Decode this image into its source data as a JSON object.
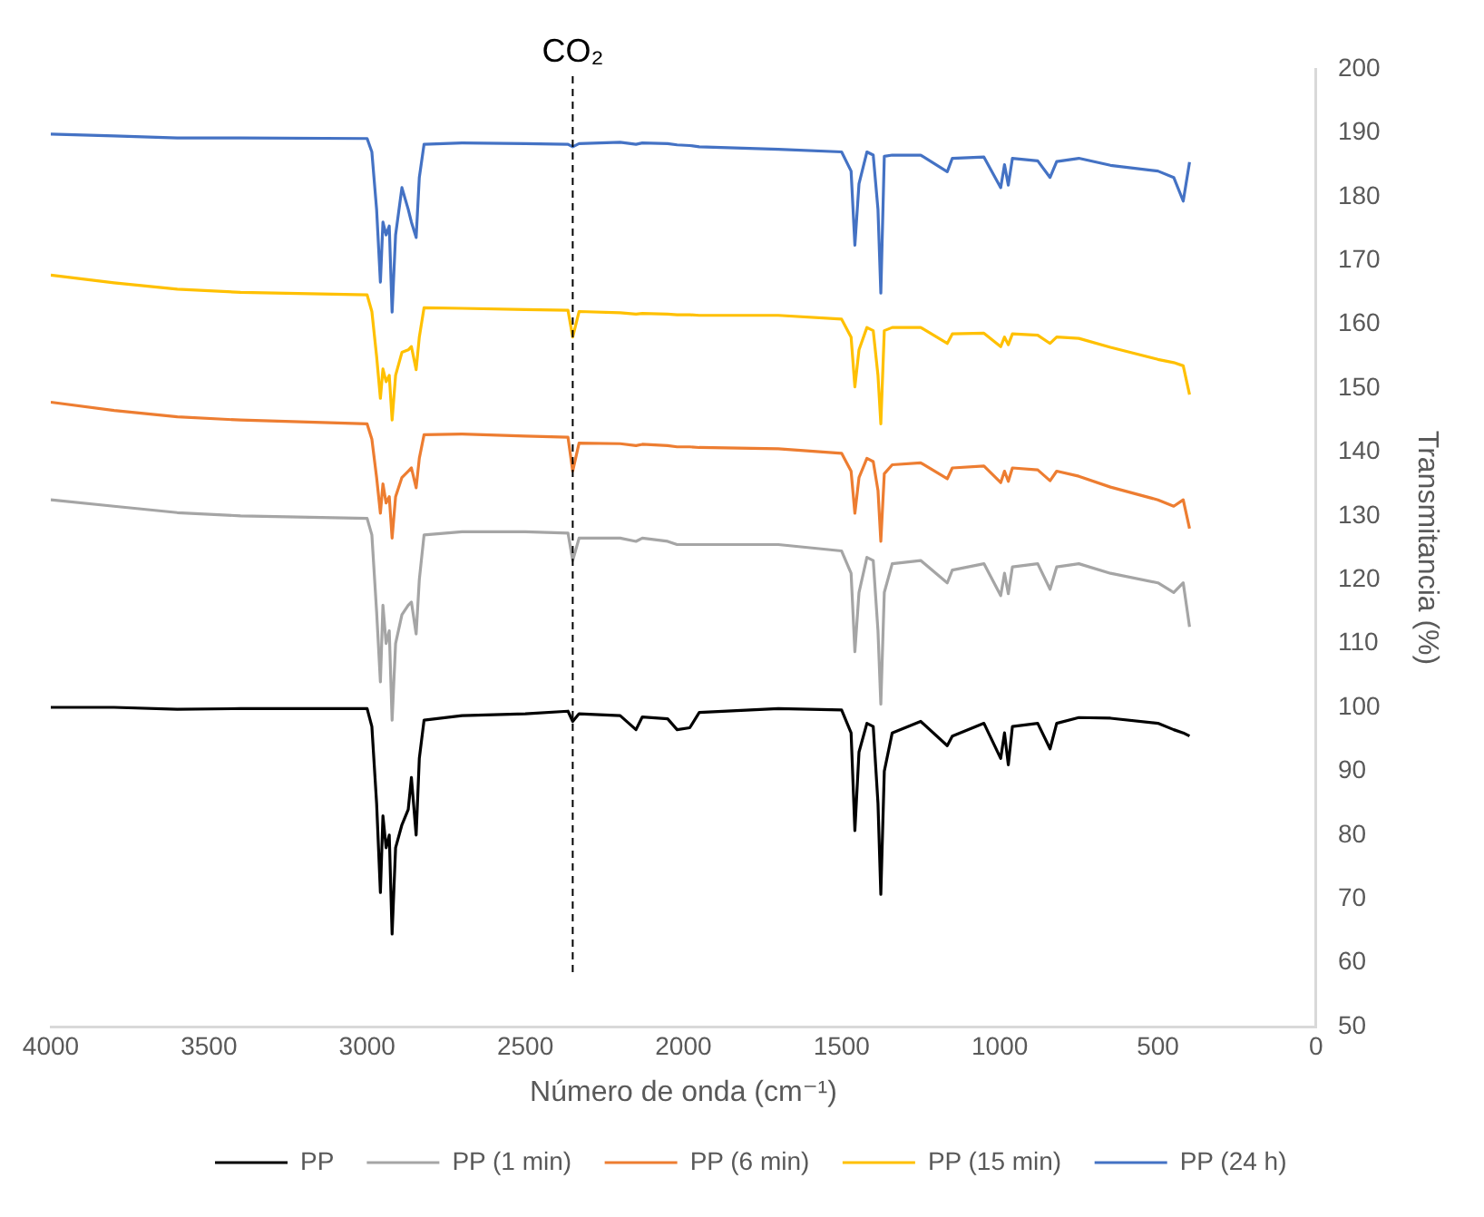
{
  "chart_data": {
    "type": "line",
    "xlabel": "Número de onda (cm⁻¹)",
    "ylabel": "Transmitancia (%)",
    "x": [
      4000,
      3800,
      3600,
      3400,
      3000,
      2985,
      2970,
      2958,
      2950,
      2940,
      2930,
      2921,
      2910,
      2890,
      2870,
      2860,
      2845,
      2835,
      2820,
      2700,
      2500,
      2365,
      2350,
      2330,
      2200,
      2150,
      2130,
      2050,
      2020,
      1980,
      1950,
      1700,
      1500,
      1470,
      1458,
      1445,
      1420,
      1400,
      1385,
      1376,
      1365,
      1340,
      1250,
      1166,
      1150,
      1050,
      997,
      985,
      973,
      960,
      880,
      841,
      820,
      750,
      650,
      500,
      450,
      420,
      400
    ],
    "series": [
      {
        "name": "PP",
        "color": "#000000",
        "values": [
          100,
          100,
          99.7,
          99.8,
          99.8,
          97,
          85,
          71,
          83,
          78,
          80,
          64.5,
          78,
          81.6,
          84,
          89,
          80,
          92,
          98,
          98.7,
          99,
          99.4,
          97.8,
          99,
          98.7,
          96.5,
          98.5,
          98.2,
          96.5,
          96.8,
          99.2,
          99.8,
          99.6,
          96,
          80.7,
          93,
          97.5,
          97,
          85,
          70.7,
          90,
          96,
          97.8,
          94,
          95.5,
          97.5,
          92,
          96,
          91,
          97,
          97.5,
          93.5,
          97.5,
          98.4,
          98.3,
          97.5,
          96.5,
          96,
          95.5
        ]
      },
      {
        "name": "PP (1 min)",
        "color": "#a5a5a5",
        "values": [
          132.5,
          131.5,
          130.5,
          130,
          129.6,
          127,
          115,
          104,
          116,
          110,
          112,
          98,
          110,
          114.5,
          116,
          116.5,
          111.5,
          120,
          127,
          127.5,
          127.5,
          127.3,
          123,
          126.5,
          126.5,
          126,
          126.5,
          126,
          125.5,
          125.5,
          125.5,
          125.5,
          124.5,
          121,
          108.7,
          118,
          123.5,
          123,
          112,
          100.5,
          118,
          122.5,
          123,
          119.5,
          121.5,
          122.5,
          117.5,
          121,
          117.8,
          122,
          122.5,
          118.5,
          122,
          122.5,
          121,
          119.5,
          118,
          119.5,
          112.6
        ]
      },
      {
        "name": "PP (6 min)",
        "color": "#ed7d31",
        "values": [
          147.8,
          146.5,
          145.5,
          145,
          144.4,
          142,
          136,
          130.4,
          135,
          132,
          133,
          126.5,
          133,
          136,
          137,
          137.5,
          134.4,
          139,
          142.7,
          142.8,
          142.5,
          142.3,
          137,
          141.4,
          141.3,
          141,
          141.2,
          141,
          140.8,
          140.8,
          140.7,
          140.5,
          139.8,
          137,
          130.4,
          136,
          139,
          138.5,
          134,
          126,
          136.6,
          138,
          138.3,
          135.8,
          137.5,
          137.8,
          135.2,
          137,
          135.4,
          137.5,
          137.2,
          135.5,
          137,
          136.2,
          134.5,
          132.5,
          131.5,
          132.5,
          128
        ]
      },
      {
        "name": "PP (15 min)",
        "color": "#ffc000",
        "values": [
          167.7,
          166.5,
          165.5,
          165,
          164.6,
          162,
          155,
          148.4,
          153,
          151,
          152,
          145,
          152,
          155.6,
          156,
          156.5,
          152.9,
          158,
          162.6,
          162.5,
          162.3,
          162.2,
          158,
          162,
          161.8,
          161.6,
          161.7,
          161.6,
          161.5,
          161.5,
          161.4,
          161.4,
          160.8,
          158,
          150.2,
          156,
          159.5,
          159,
          152,
          144.4,
          159,
          159.5,
          159.5,
          157,
          158.5,
          158.6,
          156.5,
          158,
          156.8,
          158.5,
          158.3,
          157,
          158,
          157.8,
          156.4,
          154.5,
          154,
          153.5,
          149
        ]
      },
      {
        "name": "PP (24 h)",
        "color": "#4472c4",
        "values": [
          189.8,
          189.5,
          189.2,
          189.2,
          189.1,
          187,
          178,
          166.6,
          176,
          174,
          175.4,
          161.9,
          174,
          181.4,
          178,
          176,
          173.6,
          183,
          188.2,
          188.4,
          188.3,
          188.2,
          187.8,
          188.3,
          188.5,
          188.2,
          188.4,
          188.3,
          188.1,
          188,
          187.8,
          187.4,
          187,
          184,
          172.4,
          182,
          187,
          186.5,
          178,
          164.9,
          186.3,
          186.5,
          186.5,
          183.9,
          186,
          186.2,
          181.4,
          185,
          181.8,
          186,
          185.6,
          183,
          185.5,
          186,
          184.9,
          184,
          183,
          179.3,
          185.4
        ]
      }
    ],
    "xlim": [
      4000,
      0
    ],
    "xticks": [
      4000,
      3500,
      3000,
      2500,
      2000,
      1500,
      1000,
      500,
      0
    ],
    "ylim": [
      50,
      200
    ],
    "yticks": [
      50,
      60,
      70,
      80,
      90,
      100,
      110,
      120,
      130,
      140,
      150,
      160,
      170,
      180,
      190,
      200
    ],
    "ref_lines": [
      {
        "axis": "x",
        "value": 2350,
        "label": "CO₂",
        "color": "#000000",
        "line_style": "dashed"
      }
    ],
    "grid": false,
    "legend": "bottom"
  }
}
